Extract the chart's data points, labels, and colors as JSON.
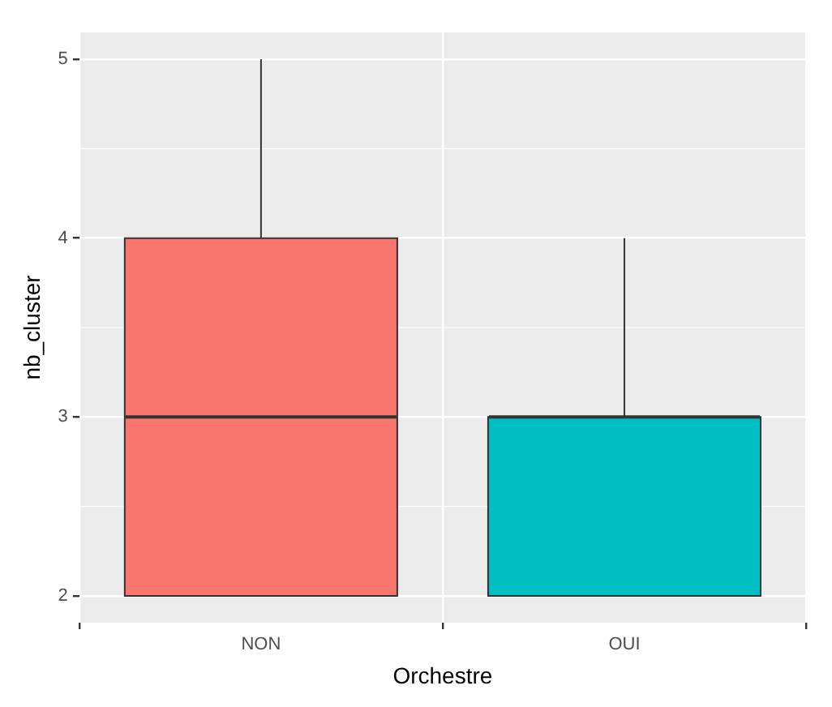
{
  "chart_data": {
    "type": "box",
    "xlabel": "Orchestre",
    "ylabel": "nb_cluster",
    "categories": [
      "NON",
      "OUI"
    ],
    "colors": [
      "#f8766d",
      "#00bfc4"
    ],
    "boxes": [
      {
        "low": 2,
        "q1": 2,
        "median": 3,
        "q3": 4,
        "high": 5
      },
      {
        "low": 2,
        "q1": 2,
        "median": 3,
        "q3": 3,
        "high": 4
      }
    ],
    "ylim": [
      1.85,
      5.15
    ],
    "yticks": [
      2,
      3,
      4,
      5
    ],
    "grid": true,
    "legend": false
  }
}
